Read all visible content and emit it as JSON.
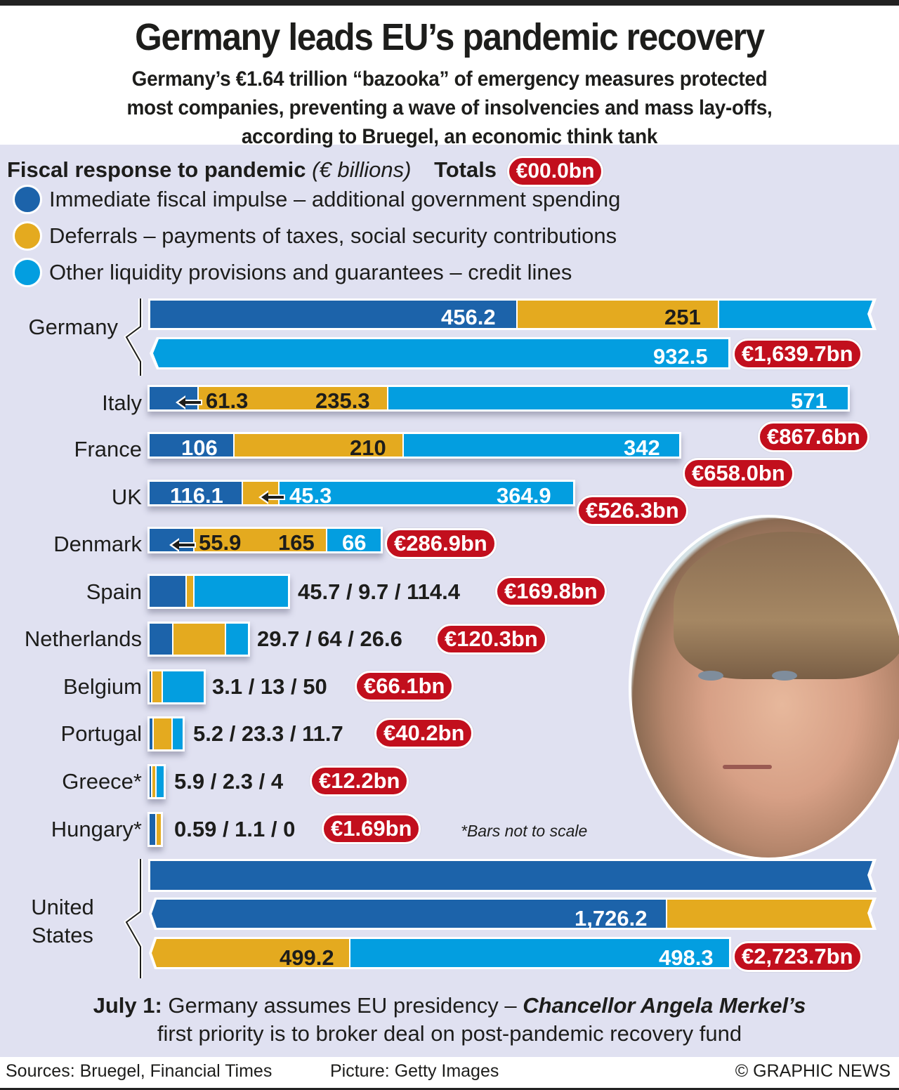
{
  "header": {
    "title": "Germany leads EU’s pandemic recovery",
    "subtitle_lines": [
      "Germany’s €1.64 trillion “bazooka” of emergency measures protected",
      "most companies, preventing a wave of insolvencies and mass lay-offs,",
      "according to Bruegel, an economic think tank"
    ]
  },
  "legend": {
    "heading": "Fiscal response to pandemic",
    "unit": "(€ billions)",
    "totals_label": "Totals",
    "totals_example": "€00.0bn",
    "items": [
      {
        "label": "Immediate fiscal impulse – additional government spending",
        "color": "#1c63aa"
      },
      {
        "label": "Deferrals – payments of taxes, social security contributions",
        "color": "#e4aa1f"
      },
      {
        "label": "Other liquidity provisions and guarantees – credit lines",
        "color": "#039ee0"
      }
    ]
  },
  "chart_data": {
    "type": "bar",
    "orientation": "horizontal",
    "stacked": true,
    "title": "Fiscal response to pandemic (€ billions)",
    "series_names": [
      "Immediate fiscal impulse – additional government spending",
      "Deferrals – payments of taxes, social security contributions",
      "Other liquidity provisions and guarantees – credit lines"
    ],
    "series_colors": [
      "#1c63aa",
      "#e4aa1f",
      "#039ee0"
    ],
    "categories": [
      "Germany",
      "Italy",
      "France",
      "UK",
      "Denmark",
      "Spain",
      "Netherlands",
      "Belgium",
      "Portugal",
      "Greece*",
      "Hungary*",
      "United States"
    ],
    "series": [
      {
        "name": "Immediate fiscal impulse",
        "values": [
          456.2,
          61.3,
          106,
          116.1,
          55.9,
          45.7,
          29.7,
          3.1,
          5.2,
          5.9,
          0.59,
          1726.2
        ]
      },
      {
        "name": "Deferrals",
        "values": [
          251,
          235.3,
          210,
          45.3,
          165,
          9.7,
          64,
          13,
          23.3,
          2.3,
          1.1,
          499.2
        ]
      },
      {
        "name": "Other liquidity provisions and guarantees",
        "values": [
          932.5,
          571,
          342,
          364.9,
          66,
          114.4,
          26.6,
          50,
          11.7,
          4,
          0,
          498.3
        ]
      }
    ],
    "value_labels": [
      "456.2",
      "251",
      "932.5",
      "61.3",
      "235.3",
      "571",
      "106",
      "210",
      "342",
      "116.1",
      "45.3",
      "364.9",
      "55.9",
      "165",
      "66",
      "45.7 / 9.7 / 114.4",
      "29.7 / 64 / 26.6",
      "3.1 / 13 / 50",
      "5.2 / 23.3 / 11.7",
      "5.9 / 2.3 / 4",
      "0.59 / 1.1 / 0",
      "1,726.2",
      "499.2",
      "498.3"
    ],
    "totals": [
      "€1,639.7bn",
      "€867.6bn",
      "€658.0bn",
      "€526.3bn",
      "€286.9bn",
      "€169.8bn",
      "€120.3bn",
      "€66.1bn",
      "€40.2bn",
      "€12.2bn",
      "€1.69bn",
      "€2,723.7bn"
    ],
    "note": "*Bars not to scale"
  },
  "rows": {
    "germany": {
      "name": "Germany",
      "v1": "456.2",
      "v2": "251",
      "v3": "932.5",
      "total": "€1,639.7bn"
    },
    "italy": {
      "name": "Italy",
      "v1": "61.3",
      "v2": "235.3",
      "v3": "571",
      "total": "€867.6bn"
    },
    "france": {
      "name": "France",
      "v1": "106",
      "v2": "210",
      "v3": "342",
      "total": "€658.0bn"
    },
    "uk": {
      "name": "UK",
      "v1": "116.1",
      "v2": "45.3",
      "v3": "364.9",
      "total": "€526.3bn"
    },
    "denmark": {
      "name": "Denmark",
      "v1": "55.9",
      "v2": "165",
      "v3": "66",
      "total": "€286.9bn"
    },
    "spain": {
      "name": "Spain",
      "text": "45.7 / 9.7 / 114.4",
      "total": "€169.8bn"
    },
    "netherlands": {
      "name": "Netherlands",
      "text": "29.7 / 64 / 26.6",
      "total": "€120.3bn"
    },
    "belgium": {
      "name": "Belgium",
      "text": "3.1 / 13 / 50",
      "total": "€66.1bn"
    },
    "portugal": {
      "name": "Portugal",
      "text": "5.2 / 23.3 / 11.7",
      "total": "€40.2bn"
    },
    "greece": {
      "name": "Greece*",
      "text": "5.9 / 2.3 / 4",
      "total": "€12.2bn"
    },
    "hungary": {
      "name": "Hungary*",
      "text": "0.59 / 1.1 / 0",
      "total": "€1.69bn"
    },
    "us": {
      "name_line1": "United",
      "name_line2": "States",
      "v1": "1,726.2",
      "v2": "499.2",
      "v3": "498.3",
      "total": "€2,723.7bn"
    }
  },
  "note": "*Bars not to scale",
  "bottom": {
    "date": "July 1:",
    "text1": " Germany assumes EU presidency – ",
    "emph": "Chancellor Angela Merkel’s",
    "line2": "first priority is to broker deal on post-pandemic recovery fund"
  },
  "footer": {
    "sources": "Sources: Bruegel, Financial Times",
    "picture": "Picture: Getty Images",
    "credit": "© GRAPHIC NEWS"
  },
  "colors": {
    "dark_blue": "#1c63aa",
    "gold": "#e4aa1f",
    "light_blue": "#039ee0",
    "total_red": "#c20f1d",
    "background": "#e0e1f1"
  }
}
